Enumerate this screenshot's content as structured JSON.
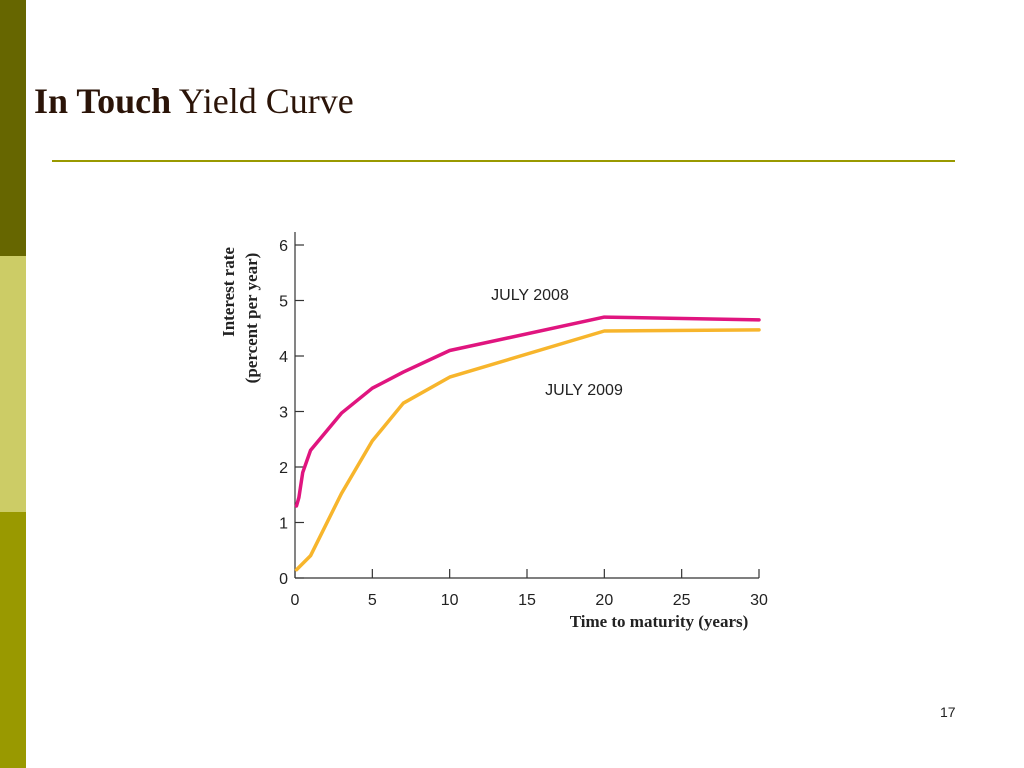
{
  "slide": {
    "title_bold": "In Touch",
    "title_rest": " Yield Curve",
    "page_number": "17"
  },
  "colors": {
    "sidebar_top": "#666600",
    "sidebar_mid": "#cccc66",
    "sidebar_bottom": "#999900",
    "rule": "#999900",
    "july_2008": "#e0157f",
    "july_2009": "#f7b52c"
  },
  "chart_data": {
    "type": "line",
    "xlabel": "Time to maturity (years)",
    "ylabel_line1": "Interest rate",
    "ylabel_line2": "(percent per year)",
    "xlim": [
      0,
      30
    ],
    "ylim": [
      0,
      6
    ],
    "x_ticks": [
      0,
      5,
      10,
      15,
      20,
      25,
      30
    ],
    "y_ticks": [
      0,
      1,
      2,
      3,
      4,
      5,
      6
    ],
    "grid": false,
    "series": [
      {
        "name": "JULY 2008",
        "color": "#e0157f",
        "points": [
          [
            0.1,
            1.3
          ],
          [
            0.25,
            1.45
          ],
          [
            0.5,
            1.9
          ],
          [
            1,
            2.3
          ],
          [
            3,
            2.97
          ],
          [
            5,
            3.42
          ],
          [
            7,
            3.71
          ],
          [
            10,
            4.1
          ],
          [
            20,
            4.7
          ],
          [
            30,
            4.65
          ]
        ]
      },
      {
        "name": "JULY 2009",
        "color": "#f7b52c",
        "points": [
          [
            0.1,
            0.15
          ],
          [
            1,
            0.4
          ],
          [
            3,
            1.52
          ],
          [
            5,
            2.47
          ],
          [
            7,
            3.15
          ],
          [
            10,
            3.62
          ],
          [
            20,
            4.45
          ],
          [
            30,
            4.47
          ]
        ]
      }
    ]
  }
}
